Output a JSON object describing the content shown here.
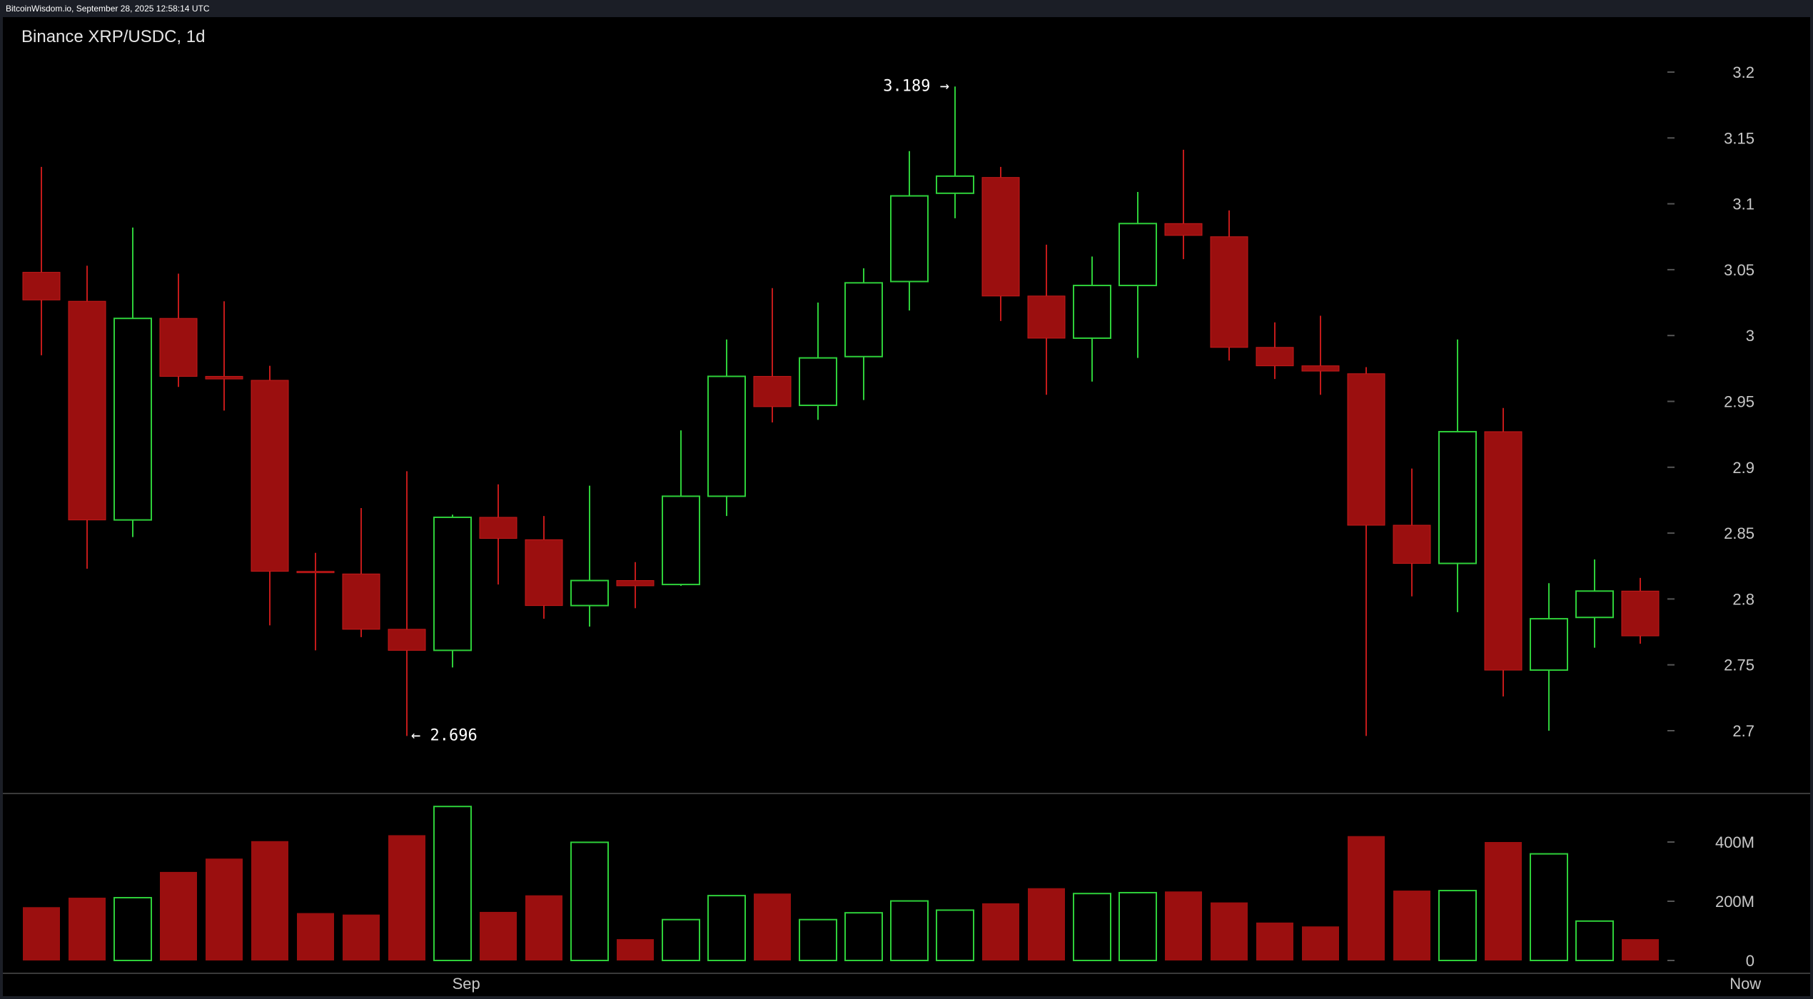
{
  "header": {
    "source_text": "BitcoinWisdom.io, September 28, 2025 12:58:14 UTC"
  },
  "chart_data": {
    "type": "candlestick",
    "title": "Binance XRP/USDC, 1d",
    "price_axis": {
      "ticks": [
        "3.2",
        "3.15",
        "3.1",
        "3.05",
        "3",
        "2.95",
        "2.9",
        "2.85",
        "2.8",
        "2.75",
        "2.7"
      ],
      "range": [
        2.66,
        3.24
      ]
    },
    "volume_axis": {
      "ticks": [
        "400M",
        "200M",
        "0"
      ],
      "range": [
        0,
        520
      ]
    },
    "x_labels": [
      {
        "text": "Sep",
        "candle_index": 9.3
      },
      {
        "text": "Now",
        "candle_index": 37.3
      }
    ],
    "colors": {
      "up": "#2ed03a",
      "down": "#9b0f0f",
      "down_wick": "#c41a1a",
      "grid_tick": "#555555"
    },
    "annotations": {
      "high": {
        "label": "3.189 →",
        "candle_index": 20,
        "value": 3.189
      },
      "low": {
        "label": "← 2.696",
        "candle_index": 8,
        "value": 2.696
      }
    },
    "candles": [
      {
        "o": 3.048,
        "h": 3.128,
        "l": 2.985,
        "c": 3.027,
        "v": 180
      },
      {
        "o": 3.026,
        "h": 3.053,
        "l": 2.823,
        "c": 2.86,
        "v": 212
      },
      {
        "o": 2.86,
        "h": 3.082,
        "l": 2.847,
        "c": 3.013,
        "v": 212
      },
      {
        "o": 3.013,
        "h": 3.047,
        "l": 2.961,
        "c": 2.969,
        "v": 299
      },
      {
        "o": 2.969,
        "h": 3.026,
        "l": 2.943,
        "c": 2.967,
        "v": 344
      },
      {
        "o": 2.966,
        "h": 2.977,
        "l": 2.78,
        "c": 2.821,
        "v": 403
      },
      {
        "o": 2.821,
        "h": 2.835,
        "l": 2.761,
        "c": 2.82,
        "v": 160
      },
      {
        "o": 2.819,
        "h": 2.869,
        "l": 2.771,
        "c": 2.777,
        "v": 155
      },
      {
        "o": 2.777,
        "h": 2.897,
        "l": 2.696,
        "c": 2.761,
        "v": 423
      },
      {
        "o": 2.761,
        "h": 2.864,
        "l": 2.748,
        "c": 2.862,
        "v": 520
      },
      {
        "o": 2.862,
        "h": 2.887,
        "l": 2.811,
        "c": 2.846,
        "v": 164
      },
      {
        "o": 2.845,
        "h": 2.863,
        "l": 2.785,
        "c": 2.795,
        "v": 220
      },
      {
        "o": 2.795,
        "h": 2.886,
        "l": 2.779,
        "c": 2.814,
        "v": 399
      },
      {
        "o": 2.814,
        "h": 2.828,
        "l": 2.793,
        "c": 2.81,
        "v": 72
      },
      {
        "o": 2.811,
        "h": 2.928,
        "l": 2.81,
        "c": 2.878,
        "v": 138
      },
      {
        "o": 2.878,
        "h": 2.997,
        "l": 2.863,
        "c": 2.969,
        "v": 219
      },
      {
        "o": 2.969,
        "h": 3.036,
        "l": 2.934,
        "c": 2.946,
        "v": 226
      },
      {
        "o": 2.947,
        "h": 3.025,
        "l": 2.936,
        "c": 2.983,
        "v": 138
      },
      {
        "o": 2.984,
        "h": 3.051,
        "l": 2.951,
        "c": 3.04,
        "v": 161
      },
      {
        "o": 3.041,
        "h": 3.14,
        "l": 3.019,
        "c": 3.106,
        "v": 201
      },
      {
        "o": 3.108,
        "h": 3.189,
        "l": 3.089,
        "c": 3.121,
        "v": 170
      },
      {
        "o": 3.12,
        "h": 3.128,
        "l": 3.011,
        "c": 3.03,
        "v": 193
      },
      {
        "o": 3.03,
        "h": 3.069,
        "l": 2.955,
        "c": 2.998,
        "v": 244
      },
      {
        "o": 2.998,
        "h": 3.06,
        "l": 2.965,
        "c": 3.038,
        "v": 226
      },
      {
        "o": 3.038,
        "h": 3.109,
        "l": 2.983,
        "c": 3.085,
        "v": 229
      },
      {
        "o": 3.085,
        "h": 3.141,
        "l": 3.058,
        "c": 3.076,
        "v": 233
      },
      {
        "o": 3.075,
        "h": 3.095,
        "l": 2.981,
        "c": 2.991,
        "v": 196
      },
      {
        "o": 2.991,
        "h": 3.01,
        "l": 2.967,
        "c": 2.977,
        "v": 128
      },
      {
        "o": 2.977,
        "h": 3.015,
        "l": 2.955,
        "c": 2.973,
        "v": 115
      },
      {
        "o": 2.971,
        "h": 2.976,
        "l": 2.696,
        "c": 2.856,
        "v": 420
      },
      {
        "o": 2.856,
        "h": 2.899,
        "l": 2.802,
        "c": 2.827,
        "v": 236
      },
      {
        "o": 2.827,
        "h": 2.997,
        "l": 2.79,
        "c": 2.927,
        "v": 236
      },
      {
        "o": 2.927,
        "h": 2.945,
        "l": 2.726,
        "c": 2.746,
        "v": 400
      },
      {
        "o": 2.746,
        "h": 2.812,
        "l": 2.7,
        "c": 2.785,
        "v": 360
      },
      {
        "o": 2.786,
        "h": 2.83,
        "l": 2.763,
        "c": 2.806,
        "v": 133
      },
      {
        "o": 2.806,
        "h": 2.816,
        "l": 2.766,
        "c": 2.772,
        "v": 72
      }
    ]
  }
}
